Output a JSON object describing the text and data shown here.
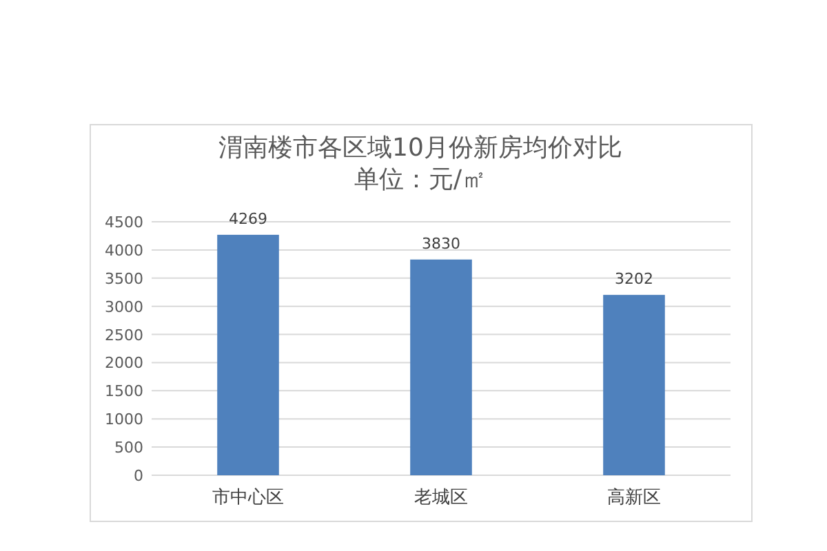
{
  "chart_data": {
    "type": "bar",
    "title": "渭南楼市各区域10月份新房均价对比",
    "subtitle": "单位：元/㎡",
    "categories": [
      "市中心区",
      "老城区",
      "高新区"
    ],
    "values": [
      4269,
      3830,
      3202
    ],
    "color": "#4f81bd",
    "ylim": [
      0,
      4500
    ],
    "yticks": [
      0,
      500,
      1000,
      1500,
      2000,
      2500,
      3000,
      3500,
      4000,
      4500
    ],
    "grid": "y",
    "data_labels": true
  }
}
